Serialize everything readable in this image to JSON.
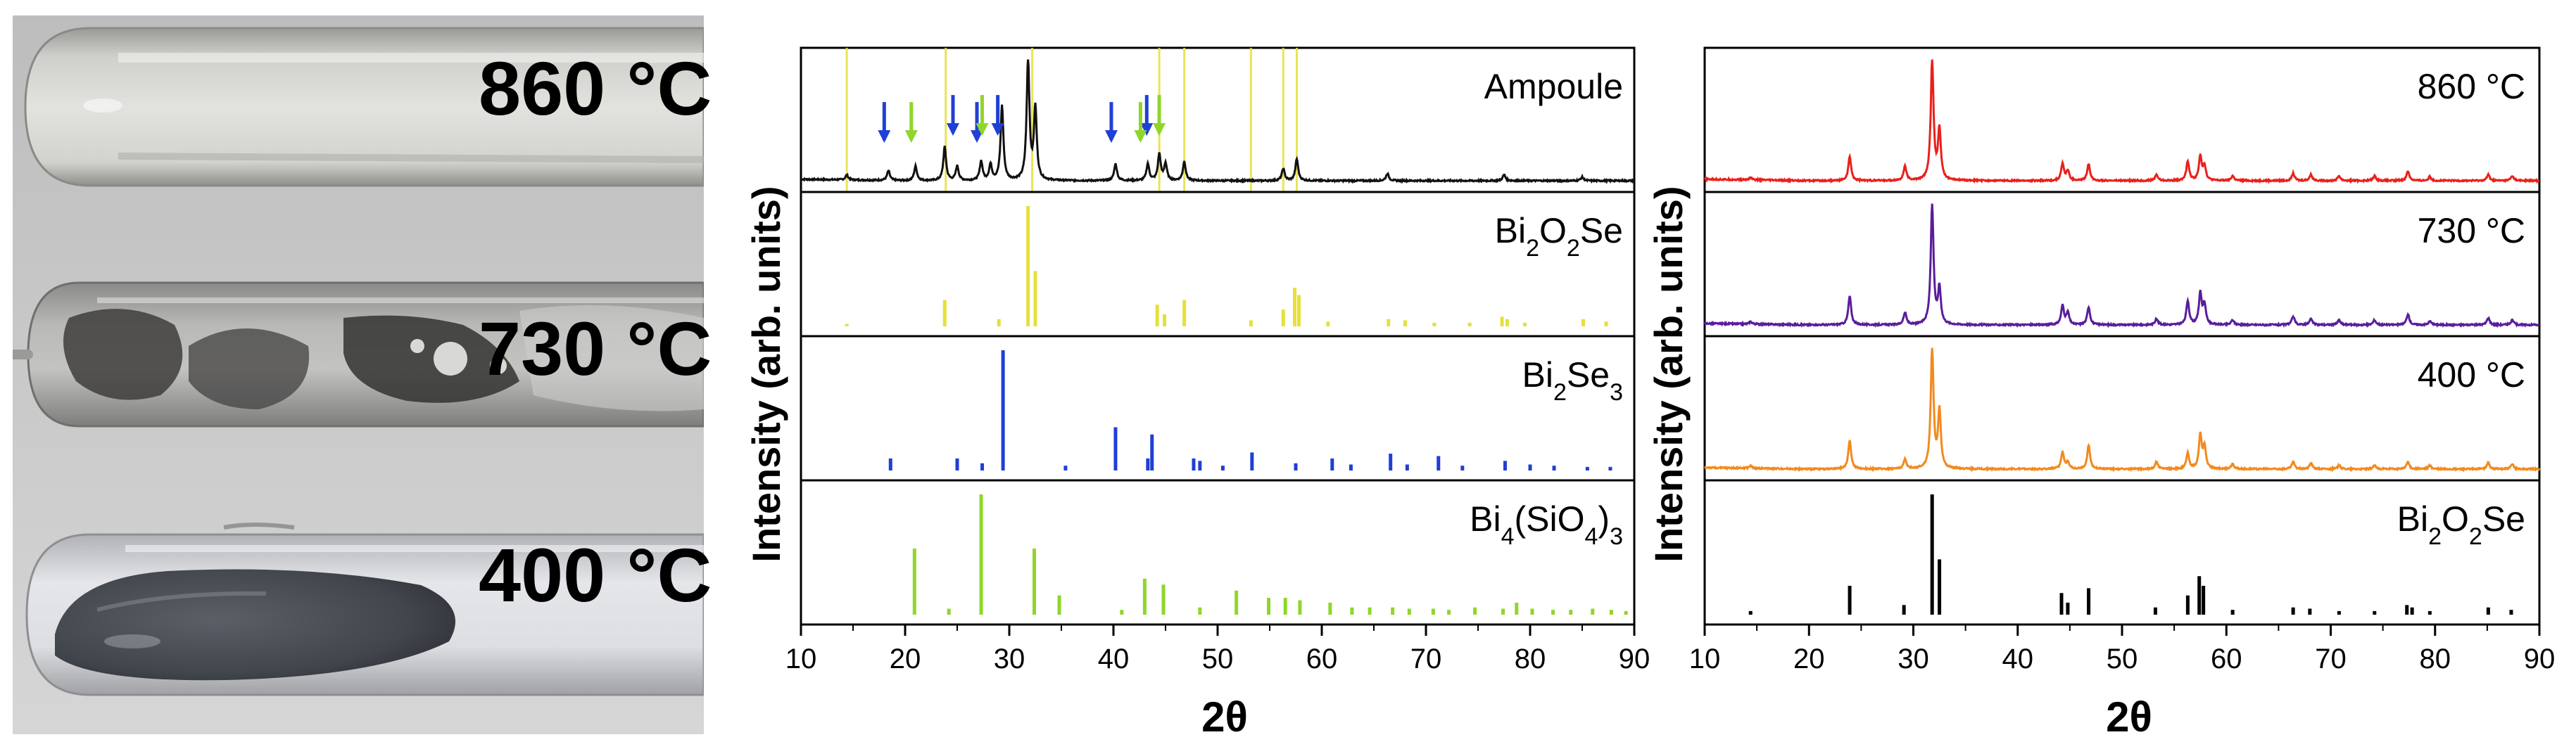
{
  "photo": {
    "labels": [
      "860 °C",
      "730 °C",
      "400 °C"
    ]
  },
  "colors": {
    "ampoule": "#111111",
    "bi2o2se_ref": "#e6e03a",
    "bi2se3_ref": "#1f3fd6",
    "bi4sio43_ref": "#8fd62a",
    "s860": "#e8211b",
    "s730": "#5a1d9c",
    "s400": "#f28a1e",
    "bi2o2se_black": "#000000"
  },
  "chart_data": [
    {
      "type": "line",
      "xlabel": "2θ",
      "ylabel": "Intensity (arb. units)",
      "xlim": [
        10,
        90
      ],
      "xticks": [
        10,
        20,
        30,
        40,
        50,
        60,
        70,
        80,
        90
      ],
      "stacked": true,
      "series": [
        {
          "name": "Ampoule",
          "kind": "pattern",
          "color": "#111111",
          "peaks": [
            [
              14.4,
              0.04
            ],
            [
              18.4,
              0.08
            ],
            [
              21.0,
              0.12
            ],
            [
              23.8,
              0.28
            ],
            [
              25.0,
              0.12
            ],
            [
              27.3,
              0.16
            ],
            [
              28.2,
              0.13
            ],
            [
              29.3,
              0.62
            ],
            [
              31.8,
              1.0
            ],
            [
              32.5,
              0.6
            ],
            [
              40.2,
              0.14
            ],
            [
              43.3,
              0.14
            ],
            [
              44.4,
              0.22
            ],
            [
              45.0,
              0.14
            ],
            [
              46.8,
              0.16
            ],
            [
              56.3,
              0.1
            ],
            [
              57.6,
              0.18
            ],
            [
              66.3,
              0.06
            ],
            [
              77.5,
              0.05
            ],
            [
              85.0,
              0.03
            ]
          ],
          "vlines_yellow": [
            14.4,
            23.9,
            32.2,
            44.4,
            46.8,
            53.2,
            56.3,
            57.6
          ],
          "arrows_blue": [
            18.4,
            25.0,
            27.3,
            29.3,
            40.2,
            43.6
          ],
          "arrows_green": [
            21.0,
            27.8,
            43.0,
            44.8
          ]
        },
        {
          "name": "Bi2O2Se",
          "kind": "sticks",
          "color": "#e6e03a",
          "peaks": [
            [
              14.4,
              0.02
            ],
            [
              23.8,
              0.22
            ],
            [
              29.0,
              0.06
            ],
            [
              31.8,
              1.0
            ],
            [
              32.5,
              0.46
            ],
            [
              44.2,
              0.18
            ],
            [
              44.9,
              0.1
            ],
            [
              46.8,
              0.22
            ],
            [
              53.2,
              0.05
            ],
            [
              56.3,
              0.14
            ],
            [
              57.4,
              0.32
            ],
            [
              57.8,
              0.26
            ],
            [
              60.6,
              0.04
            ],
            [
              66.4,
              0.06
            ],
            [
              68.0,
              0.05
            ],
            [
              70.8,
              0.03
            ],
            [
              74.2,
              0.03
            ],
            [
              77.3,
              0.08
            ],
            [
              77.8,
              0.06
            ],
            [
              79.5,
              0.03
            ],
            [
              85.1,
              0.06
            ],
            [
              87.3,
              0.04
            ]
          ]
        },
        {
          "name": "Bi2Se3",
          "kind": "sticks",
          "color": "#1f3fd6",
          "peaks": [
            [
              18.6,
              0.1
            ],
            [
              25.0,
              0.1
            ],
            [
              27.4,
              0.06
            ],
            [
              29.4,
              1.0
            ],
            [
              35.4,
              0.04
            ],
            [
              40.2,
              0.36
            ],
            [
              43.3,
              0.1
            ],
            [
              43.7,
              0.3
            ],
            [
              47.7,
              0.1
            ],
            [
              48.3,
              0.08
            ],
            [
              50.5,
              0.04
            ],
            [
              53.3,
              0.15
            ],
            [
              57.5,
              0.06
            ],
            [
              61.0,
              0.1
            ],
            [
              62.8,
              0.05
            ],
            [
              66.6,
              0.14
            ],
            [
              68.2,
              0.05
            ],
            [
              71.2,
              0.12
            ],
            [
              73.5,
              0.04
            ],
            [
              77.6,
              0.08
            ],
            [
              80.0,
              0.05
            ],
            [
              82.3,
              0.04
            ],
            [
              85.5,
              0.03
            ],
            [
              87.7,
              0.03
            ]
          ]
        },
        {
          "name": "Bi4(SiO4)3",
          "kind": "sticks",
          "color": "#8fd62a",
          "peaks": [
            [
              20.9,
              0.55
            ],
            [
              24.2,
              0.05
            ],
            [
              27.3,
              1.0
            ],
            [
              32.4,
              0.55
            ],
            [
              34.8,
              0.16
            ],
            [
              40.8,
              0.04
            ],
            [
              43.0,
              0.3
            ],
            [
              44.8,
              0.25
            ],
            [
              48.3,
              0.06
            ],
            [
              51.8,
              0.2
            ],
            [
              54.9,
              0.14
            ],
            [
              56.5,
              0.14
            ],
            [
              57.9,
              0.12
            ],
            [
              60.8,
              0.1
            ],
            [
              62.9,
              0.06
            ],
            [
              64.6,
              0.06
            ],
            [
              66.8,
              0.06
            ],
            [
              68.4,
              0.05
            ],
            [
              70.7,
              0.05
            ],
            [
              72.2,
              0.04
            ],
            [
              74.7,
              0.06
            ],
            [
              77.4,
              0.05
            ],
            [
              78.7,
              0.1
            ],
            [
              80.2,
              0.05
            ],
            [
              82.2,
              0.04
            ],
            [
              83.9,
              0.04
            ],
            [
              86.0,
              0.05
            ],
            [
              87.8,
              0.04
            ],
            [
              89.2,
              0.03
            ]
          ]
        }
      ],
      "series_labels": [
        {
          "text": "Ampoule",
          "parts": [
            [
              "Ampoule",
              ""
            ]
          ]
        },
        {
          "text": "Bi2O2Se",
          "parts": [
            [
              "Bi",
              ""
            ],
            [
              "2",
              "sub"
            ],
            [
              "O",
              ""
            ],
            [
              "2",
              "sub"
            ],
            [
              "Se",
              ""
            ]
          ]
        },
        {
          "text": "Bi2Se3",
          "parts": [
            [
              "Bi",
              ""
            ],
            [
              "2",
              "sub"
            ],
            [
              "Se",
              ""
            ],
            [
              "3",
              "sub"
            ]
          ]
        },
        {
          "text": "Bi4(SiO4)3",
          "parts": [
            [
              "Bi",
              ""
            ],
            [
              "4",
              "sub"
            ],
            [
              "(SiO",
              ""
            ],
            [
              "4",
              "sub"
            ],
            [
              ")",
              ""
            ],
            [
              "3",
              "sub"
            ]
          ]
        }
      ]
    },
    {
      "type": "line",
      "xlabel": "2θ",
      "ylabel": "Intensity (arb. units)",
      "xlim": [
        10,
        90
      ],
      "xticks": [
        10,
        20,
        30,
        40,
        50,
        60,
        70,
        80,
        90
      ],
      "stacked": true,
      "series": [
        {
          "name": "860 °C",
          "kind": "pattern",
          "color": "#e8211b",
          "peaks": [
            [
              14.4,
              0.02
            ],
            [
              23.9,
              0.2
            ],
            [
              29.2,
              0.12
            ],
            [
              31.8,
              1.0
            ],
            [
              32.5,
              0.42
            ],
            [
              44.3,
              0.14
            ],
            [
              44.8,
              0.08
            ],
            [
              46.8,
              0.14
            ],
            [
              53.3,
              0.05
            ],
            [
              56.3,
              0.16
            ],
            [
              57.5,
              0.2
            ],
            [
              57.9,
              0.12
            ],
            [
              60.6,
              0.04
            ],
            [
              66.4,
              0.06
            ],
            [
              68.1,
              0.05
            ],
            [
              70.8,
              0.04
            ],
            [
              74.2,
              0.04
            ],
            [
              77.4,
              0.08
            ],
            [
              79.5,
              0.03
            ],
            [
              85.1,
              0.05
            ],
            [
              87.4,
              0.04
            ]
          ]
        },
        {
          "name": "730 °C",
          "kind": "pattern",
          "color": "#5a1d9c",
          "peaks": [
            [
              14.4,
              0.02
            ],
            [
              23.9,
              0.24
            ],
            [
              29.2,
              0.1
            ],
            [
              31.8,
              1.0
            ],
            [
              32.5,
              0.3
            ],
            [
              44.3,
              0.16
            ],
            [
              44.8,
              0.1
            ],
            [
              46.8,
              0.15
            ],
            [
              53.3,
              0.05
            ],
            [
              56.3,
              0.2
            ],
            [
              57.5,
              0.26
            ],
            [
              57.9,
              0.16
            ],
            [
              60.6,
              0.04
            ],
            [
              66.4,
              0.07
            ],
            [
              68.1,
              0.05
            ],
            [
              70.8,
              0.04
            ],
            [
              74.2,
              0.04
            ],
            [
              77.4,
              0.09
            ],
            [
              79.5,
              0.03
            ],
            [
              85.1,
              0.06
            ],
            [
              87.4,
              0.04
            ]
          ]
        },
        {
          "name": "400 °C",
          "kind": "pattern",
          "color": "#f28a1e",
          "peaks": [
            [
              14.4,
              0.02
            ],
            [
              23.9,
              0.24
            ],
            [
              29.2,
              0.08
            ],
            [
              31.8,
              1.0
            ],
            [
              32.5,
              0.48
            ],
            [
              44.3,
              0.14
            ],
            [
              44.8,
              0.06
            ],
            [
              46.8,
              0.2
            ],
            [
              53.3,
              0.06
            ],
            [
              56.3,
              0.13
            ],
            [
              57.5,
              0.28
            ],
            [
              57.9,
              0.18
            ],
            [
              60.6,
              0.04
            ],
            [
              66.4,
              0.06
            ],
            [
              68.1,
              0.05
            ],
            [
              70.8,
              0.03
            ],
            [
              74.2,
              0.03
            ],
            [
              77.4,
              0.06
            ],
            [
              79.5,
              0.03
            ],
            [
              85.1,
              0.05
            ],
            [
              87.4,
              0.04
            ]
          ]
        },
        {
          "name": "Bi2O2Se",
          "kind": "sticks",
          "color": "#000000",
          "peaks": [
            [
              14.4,
              0.03
            ],
            [
              23.9,
              0.24
            ],
            [
              29.1,
              0.08
            ],
            [
              31.8,
              1.0
            ],
            [
              32.5,
              0.46
            ],
            [
              44.2,
              0.18
            ],
            [
              44.8,
              0.1
            ],
            [
              46.8,
              0.22
            ],
            [
              53.2,
              0.06
            ],
            [
              56.3,
              0.16
            ],
            [
              57.4,
              0.32
            ],
            [
              57.8,
              0.24
            ],
            [
              60.6,
              0.04
            ],
            [
              66.4,
              0.06
            ],
            [
              68.0,
              0.05
            ],
            [
              70.8,
              0.03
            ],
            [
              74.2,
              0.03
            ],
            [
              77.3,
              0.08
            ],
            [
              77.8,
              0.06
            ],
            [
              79.5,
              0.03
            ],
            [
              85.1,
              0.06
            ],
            [
              87.3,
              0.04
            ]
          ]
        }
      ],
      "series_labels": [
        {
          "text": "860 °C",
          "parts": [
            [
              "860 °C",
              ""
            ]
          ]
        },
        {
          "text": "730 °C",
          "parts": [
            [
              "730 °C",
              ""
            ]
          ]
        },
        {
          "text": "400 °C",
          "parts": [
            [
              "400 °C",
              ""
            ]
          ]
        },
        {
          "text": "Bi2O2Se",
          "parts": [
            [
              "Bi",
              ""
            ],
            [
              "2",
              "sub"
            ],
            [
              "O",
              ""
            ],
            [
              "2",
              "sub"
            ],
            [
              "Se",
              ""
            ]
          ]
        }
      ]
    }
  ]
}
